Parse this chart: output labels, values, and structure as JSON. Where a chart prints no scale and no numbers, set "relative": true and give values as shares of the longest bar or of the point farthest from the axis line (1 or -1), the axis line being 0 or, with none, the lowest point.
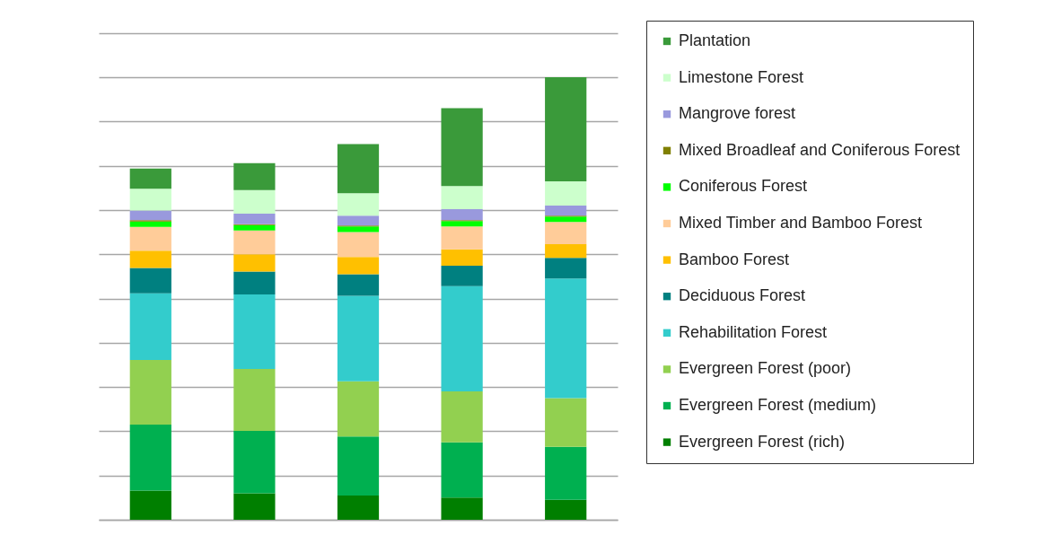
{
  "chart_data": {
    "type": "bar",
    "stacked": true,
    "relative": true,
    "grid": "y",
    "legend": "right",
    "tick_labels": false,
    "categories": [
      null,
      null,
      null,
      null,
      null
    ],
    "series": [
      {
        "name": "Evergreen Forest (rich)",
        "color": "#007f00",
        "values": [
          0.066,
          0.06,
          0.055,
          0.05,
          0.045
        ]
      },
      {
        "name": "Evergreen Forest (medium)",
        "color": "#00b050",
        "values": [
          0.149,
          0.141,
          0.133,
          0.125,
          0.12
        ]
      },
      {
        "name": "Evergreen Forest (poor)",
        "color": "#92d050",
        "values": [
          0.146,
          0.14,
          0.125,
          0.115,
          0.11
        ]
      },
      {
        "name": "Rehabilitation Forest",
        "color": "#33cccc",
        "values": [
          0.151,
          0.168,
          0.193,
          0.238,
          0.27
        ]
      },
      {
        "name": "Deciduous Forest",
        "color": "#008080",
        "values": [
          0.057,
          0.052,
          0.049,
          0.046,
          0.047
        ]
      },
      {
        "name": "Bamboo Forest",
        "color": "#ffc000",
        "values": [
          0.039,
          0.039,
          0.039,
          0.037,
          0.031
        ]
      },
      {
        "name": "Mixed Timber and Bamboo Forest",
        "color": "#ffcc99",
        "values": [
          0.054,
          0.054,
          0.056,
          0.052,
          0.05
        ]
      },
      {
        "name": "Coniferous Forest",
        "color": "#00ff00",
        "values": [
          0.012,
          0.012,
          0.013,
          0.012,
          0.012
        ]
      },
      {
        "name": "Mixed Broadleaf and Coniferous Forest",
        "color": "#808000",
        "values": [
          0.003,
          0.002,
          0.002,
          0.002,
          0.002
        ]
      },
      {
        "name": "Mangrove forest",
        "color": "#9999dd",
        "values": [
          0.022,
          0.024,
          0.022,
          0.025,
          0.023
        ]
      },
      {
        "name": "Limestone Forest",
        "color": "#ccffcc",
        "values": [
          0.049,
          0.053,
          0.051,
          0.052,
          0.055
        ]
      },
      {
        "name": "Plantation",
        "color": "#3a9a3a",
        "values": [
          0.046,
          0.061,
          0.111,
          0.176,
          0.235
        ]
      }
    ]
  }
}
